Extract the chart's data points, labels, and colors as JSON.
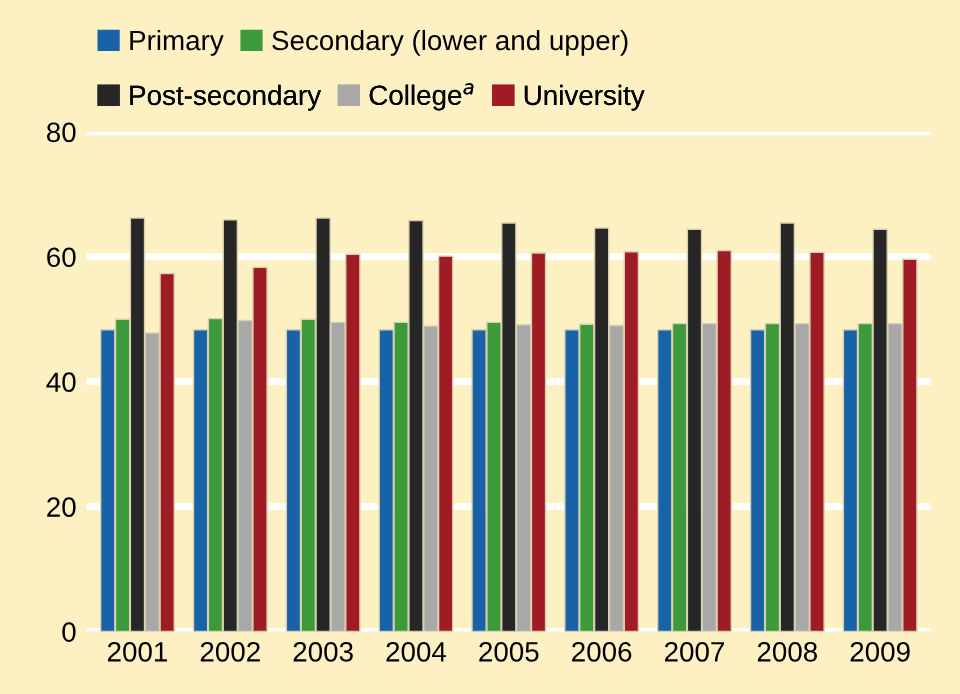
{
  "chart_data": {
    "type": "bar",
    "categories": [
      "2001",
      "2002",
      "2003",
      "2004",
      "2005",
      "2006",
      "2007",
      "2008",
      "2009"
    ],
    "series": [
      {
        "name": "Primary",
        "color": "#1a62a8",
        "values": [
          48.3,
          48.3,
          48.3,
          48.3,
          48.3,
          48.3,
          48.3,
          48.3,
          48.3
        ]
      },
      {
        "name": "Secondary (lower and upper)",
        "color": "#3d9a3a",
        "values": [
          50.0,
          50.1,
          50.0,
          49.5,
          49.5,
          49.2,
          49.3,
          49.3,
          49.3
        ]
      },
      {
        "name": "Post-secondary",
        "color": "#262626",
        "values": [
          66.2,
          65.9,
          66.2,
          65.8,
          65.4,
          64.6,
          64.4,
          65.4,
          64.4
        ]
      },
      {
        "name": "College$^{a}$",
        "color": "#a8a8a8",
        "values": [
          47.8,
          49.8,
          49.5,
          48.9,
          49.1,
          49.0,
          49.3,
          49.3,
          49.3
        ]
      },
      {
        "name": "University",
        "color": "#a01c24",
        "values": [
          57.3,
          58.3,
          60.4,
          60.1,
          60.6,
          60.8,
          61.0,
          60.7,
          59.6
        ]
      }
    ],
    "ylim": [
      0,
      80
    ],
    "yticks": [
      0,
      20,
      40,
      60,
      80
    ],
    "grid": "y",
    "legend": "top"
  }
}
